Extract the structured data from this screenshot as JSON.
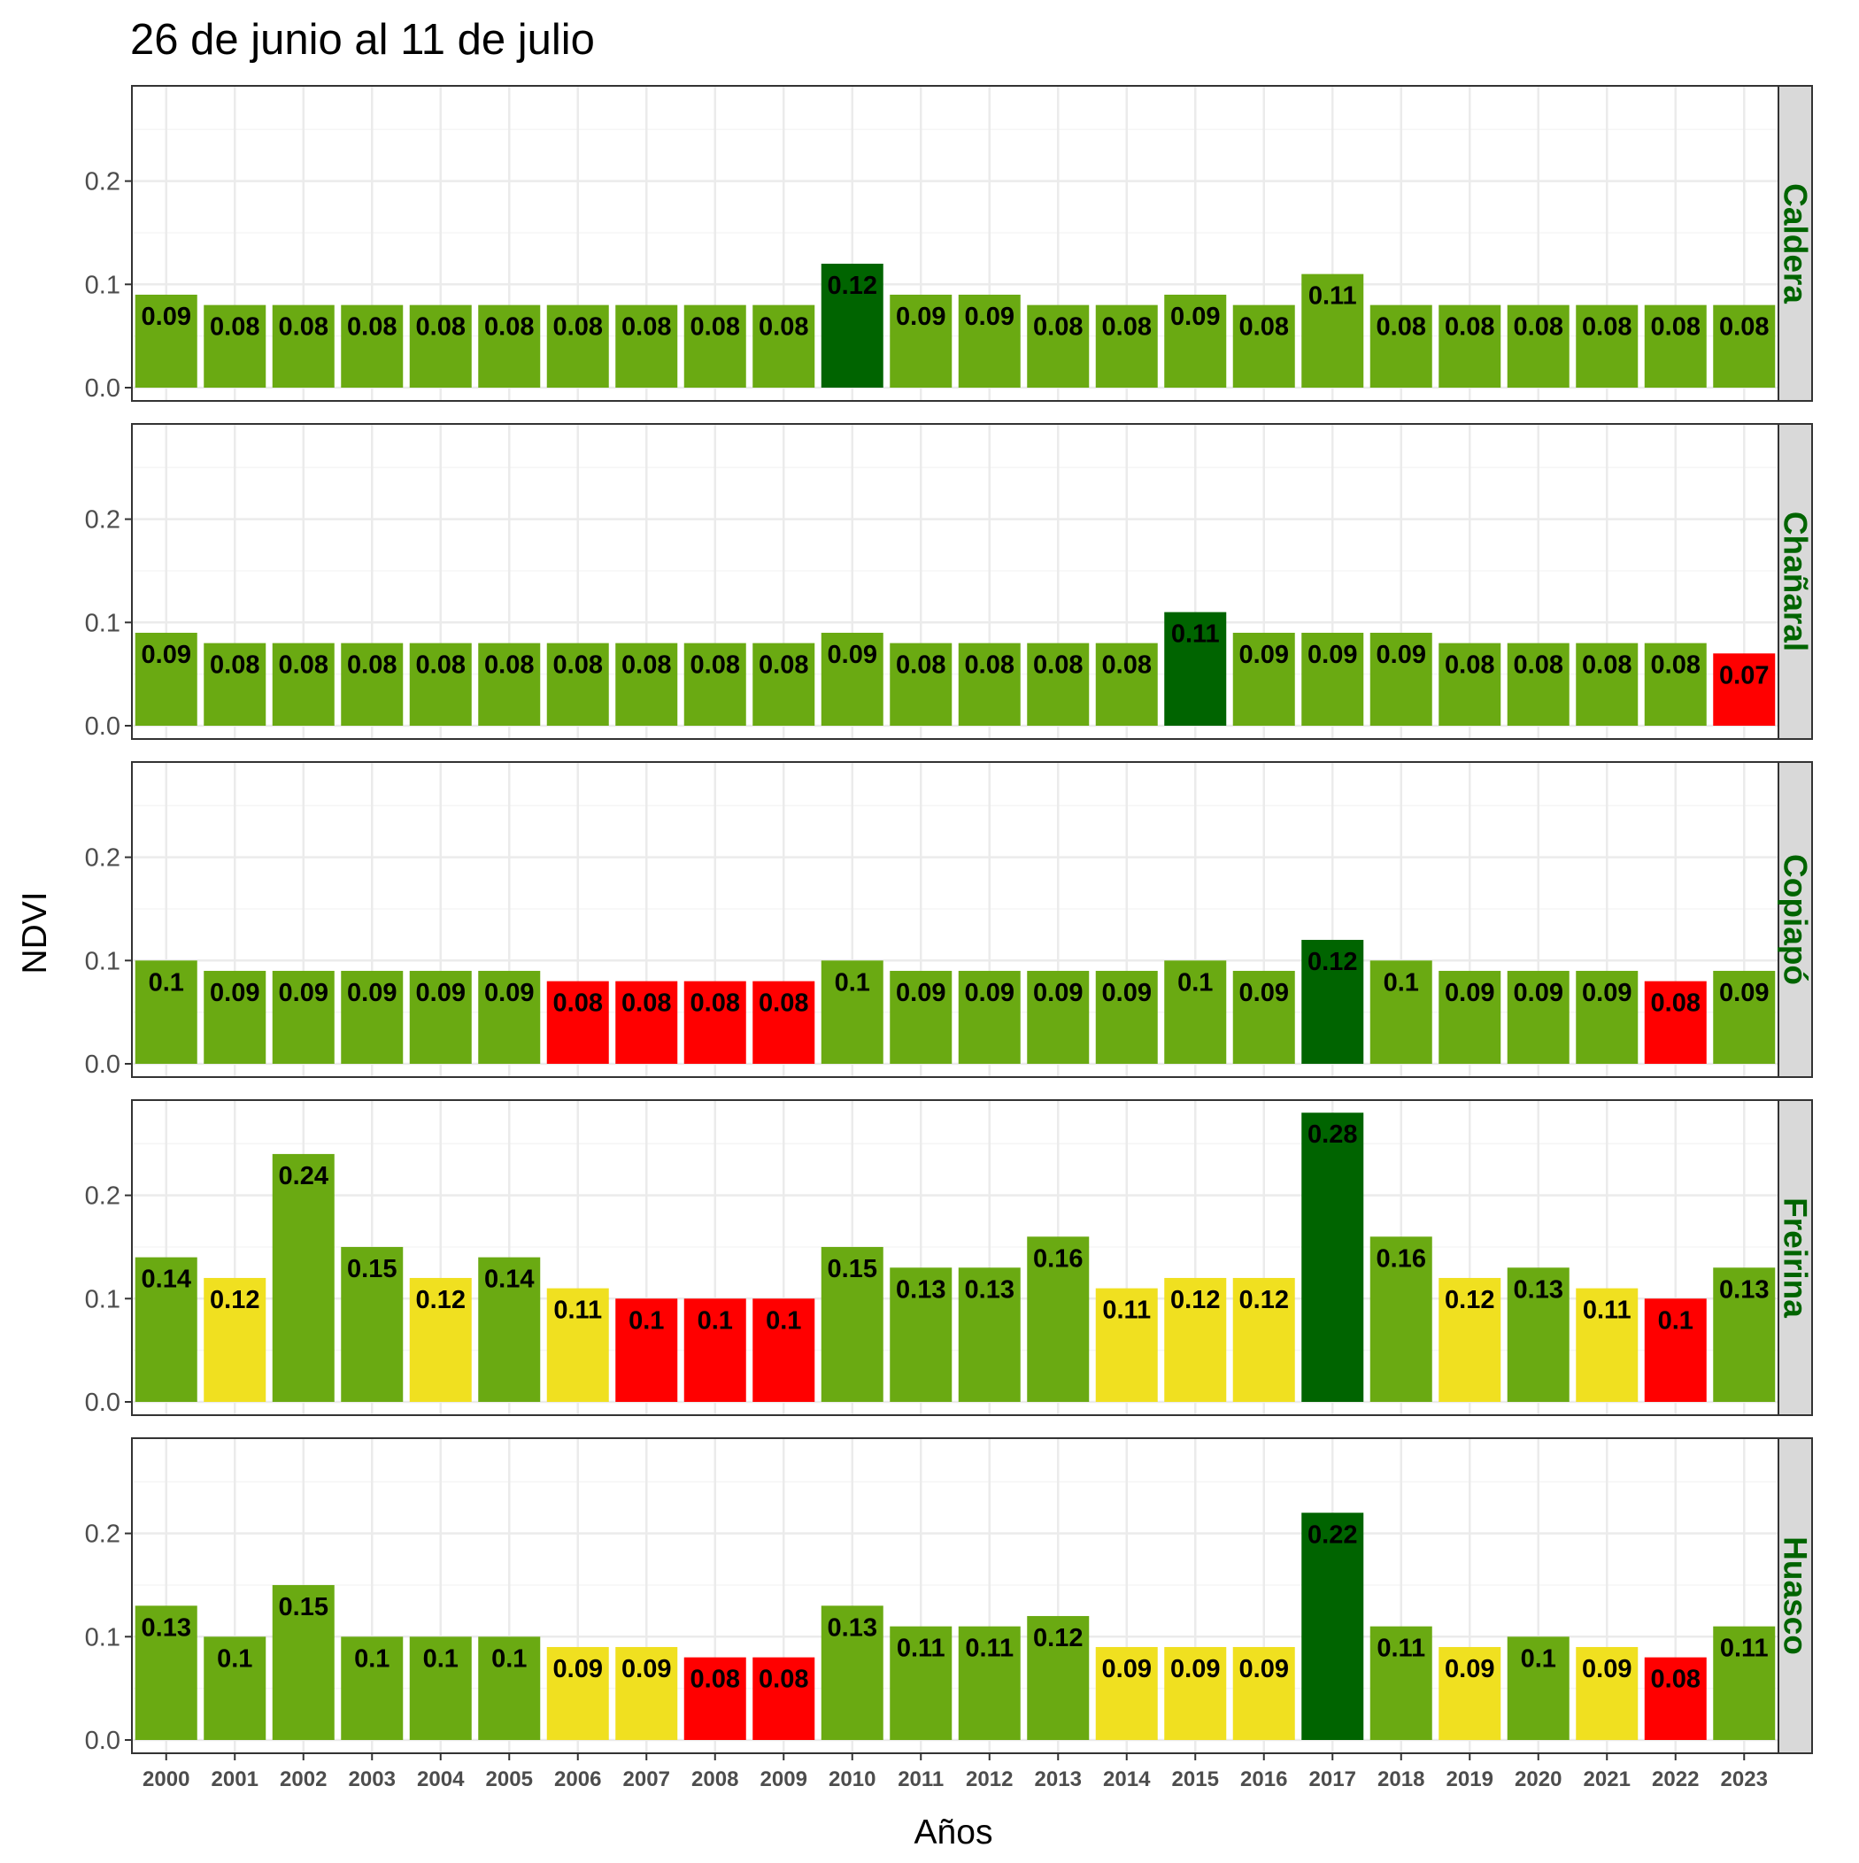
{
  "chart_data": {
    "type": "bar",
    "title": "26 de junio al 11 de julio",
    "xlabel": "Años",
    "ylabel": "NDVI",
    "ylim": [
      0,
      0.29
    ],
    "yticks": [
      0.0,
      0.1,
      0.2
    ],
    "ytick_labels": [
      "0.0",
      "0.1",
      "0.2"
    ],
    "grid": true,
    "legend": "none",
    "categories": [
      "2000",
      "2001",
      "2002",
      "2003",
      "2004",
      "2005",
      "2006",
      "2007",
      "2008",
      "2009",
      "2010",
      "2011",
      "2012",
      "2013",
      "2014",
      "2015",
      "2016",
      "2017",
      "2018",
      "2019",
      "2020",
      "2021",
      "2022",
      "2023"
    ],
    "colors": {
      "max": "#006400",
      "normal": "#6aaa12",
      "low": "#f0e020",
      "min": "#ff0000",
      "strip_bg": "#d9d9d9",
      "strip_text": "#006400",
      "grid_major": "#ebebeb",
      "grid_minor": "#f5f5f5"
    },
    "panels": [
      {
        "name": "Caldera",
        "values": [
          0.09,
          0.08,
          0.08,
          0.08,
          0.08,
          0.08,
          0.08,
          0.08,
          0.08,
          0.08,
          0.12,
          0.09,
          0.09,
          0.08,
          0.08,
          0.09,
          0.08,
          0.11,
          0.08,
          0.08,
          0.08,
          0.08,
          0.08,
          0.08
        ],
        "labels": [
          "0.09",
          "0.08",
          "0.08",
          "0.08",
          "0.08",
          "0.08",
          "0.08",
          "0.08",
          "0.08",
          "0.08",
          "0.12",
          "0.09",
          "0.09",
          "0.08",
          "0.08",
          "0.09",
          "0.08",
          "0.11",
          "0.08",
          "0.08",
          "0.08",
          "0.08",
          "0.08",
          "0.08"
        ],
        "classes": [
          "normal",
          "normal",
          "normal",
          "normal",
          "normal",
          "normal",
          "normal",
          "normal",
          "normal",
          "normal",
          "max",
          "normal",
          "normal",
          "normal",
          "normal",
          "normal",
          "normal",
          "normal",
          "normal",
          "normal",
          "normal",
          "normal",
          "normal",
          "normal"
        ]
      },
      {
        "name": "Chañaral",
        "values": [
          0.09,
          0.08,
          0.08,
          0.08,
          0.08,
          0.08,
          0.08,
          0.08,
          0.08,
          0.08,
          0.09,
          0.08,
          0.08,
          0.08,
          0.08,
          0.11,
          0.09,
          0.09,
          0.09,
          0.08,
          0.08,
          0.08,
          0.08,
          0.07
        ],
        "labels": [
          "0.09",
          "0.08",
          "0.08",
          "0.08",
          "0.08",
          "0.08",
          "0.08",
          "0.08",
          "0.08",
          "0.08",
          "0.09",
          "0.08",
          "0.08",
          "0.08",
          "0.08",
          "0.11",
          "0.09",
          "0.09",
          "0.09",
          "0.08",
          "0.08",
          "0.08",
          "0.08",
          "0.07"
        ],
        "classes": [
          "normal",
          "normal",
          "normal",
          "normal",
          "normal",
          "normal",
          "normal",
          "normal",
          "normal",
          "normal",
          "normal",
          "normal",
          "normal",
          "normal",
          "normal",
          "max",
          "normal",
          "normal",
          "normal",
          "normal",
          "normal",
          "normal",
          "normal",
          "min"
        ]
      },
      {
        "name": "Copiapó",
        "values": [
          0.1,
          0.09,
          0.09,
          0.09,
          0.09,
          0.09,
          0.08,
          0.08,
          0.08,
          0.08,
          0.1,
          0.09,
          0.09,
          0.09,
          0.09,
          0.1,
          0.09,
          0.12,
          0.1,
          0.09,
          0.09,
          0.09,
          0.08,
          0.09
        ],
        "labels": [
          "0.1",
          "0.09",
          "0.09",
          "0.09",
          "0.09",
          "0.09",
          "0.08",
          "0.08",
          "0.08",
          "0.08",
          "0.1",
          "0.09",
          "0.09",
          "0.09",
          "0.09",
          "0.1",
          "0.09",
          "0.12",
          "0.1",
          "0.09",
          "0.09",
          "0.09",
          "0.08",
          "0.09"
        ],
        "classes": [
          "normal",
          "normal",
          "normal",
          "normal",
          "normal",
          "normal",
          "min",
          "min",
          "min",
          "min",
          "normal",
          "normal",
          "normal",
          "normal",
          "normal",
          "normal",
          "normal",
          "max",
          "normal",
          "normal",
          "normal",
          "normal",
          "min",
          "normal"
        ]
      },
      {
        "name": "Freirina",
        "values": [
          0.14,
          0.12,
          0.24,
          0.15,
          0.12,
          0.14,
          0.11,
          0.1,
          0.1,
          0.1,
          0.15,
          0.13,
          0.13,
          0.16,
          0.11,
          0.12,
          0.12,
          0.28,
          0.16,
          0.12,
          0.13,
          0.11,
          0.1,
          0.13
        ],
        "labels": [
          "0.14",
          "0.12",
          "0.24",
          "0.15",
          "0.12",
          "0.14",
          "0.11",
          "0.1",
          "0.1",
          "0.1",
          "0.15",
          "0.13",
          "0.13",
          "0.16",
          "0.11",
          "0.12",
          "0.12",
          "0.28",
          "0.16",
          "0.12",
          "0.13",
          "0.11",
          "0.1",
          "0.13"
        ],
        "classes": [
          "normal",
          "low",
          "normal",
          "normal",
          "low",
          "normal",
          "low",
          "min",
          "min",
          "min",
          "normal",
          "normal",
          "normal",
          "normal",
          "low",
          "low",
          "low",
          "max",
          "normal",
          "low",
          "normal",
          "low",
          "min",
          "normal"
        ]
      },
      {
        "name": "Huasco",
        "values": [
          0.13,
          0.1,
          0.15,
          0.1,
          0.1,
          0.1,
          0.09,
          0.09,
          0.08,
          0.08,
          0.13,
          0.11,
          0.11,
          0.12,
          0.09,
          0.09,
          0.09,
          0.22,
          0.11,
          0.09,
          0.1,
          0.09,
          0.08,
          0.11
        ],
        "labels": [
          "0.13",
          "0.1",
          "0.15",
          "0.1",
          "0.1",
          "0.1",
          "0.09",
          "0.09",
          "0.08",
          "0.08",
          "0.13",
          "0.11",
          "0.11",
          "0.12",
          "0.09",
          "0.09",
          "0.09",
          "0.22",
          "0.11",
          "0.09",
          "0.1",
          "0.09",
          "0.08",
          "0.11"
        ],
        "classes": [
          "normal",
          "normal",
          "normal",
          "normal",
          "normal",
          "normal",
          "low",
          "low",
          "min",
          "min",
          "normal",
          "normal",
          "normal",
          "normal",
          "low",
          "low",
          "low",
          "max",
          "normal",
          "low",
          "normal",
          "low",
          "min",
          "normal"
        ]
      }
    ]
  }
}
